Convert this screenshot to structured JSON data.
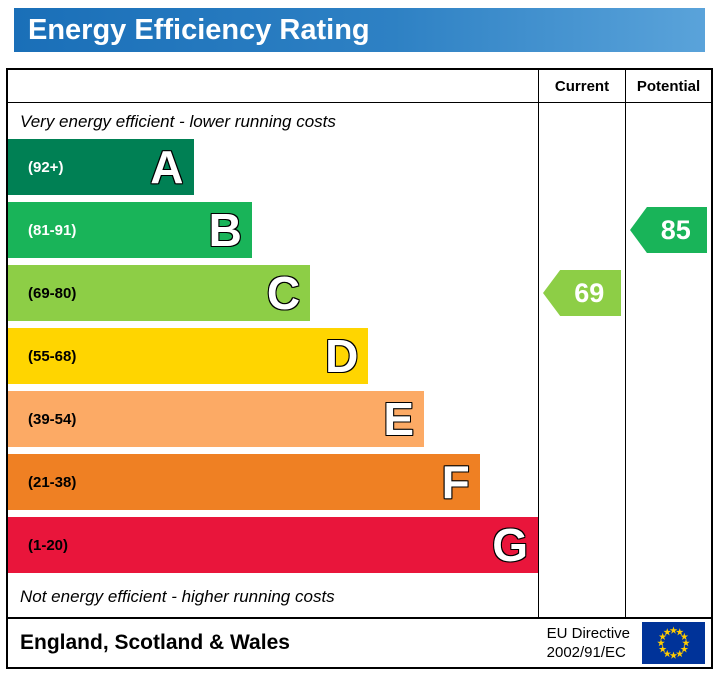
{
  "title": "Energy Efficiency Rating",
  "table_header": {
    "current": "Current",
    "potential": "Potential"
  },
  "captions": {
    "top": "Very energy efficient - lower running costs",
    "bottom": "Not energy efficient - higher running costs"
  },
  "chart_data": {
    "type": "bar",
    "title": "Energy Efficiency Rating",
    "bands": [
      {
        "letter": "A",
        "range": "(92+)",
        "color": "#008054",
        "range_text_color": "#ffffff",
        "width_pct": 35
      },
      {
        "letter": "B",
        "range": "(81-91)",
        "color": "#19b459",
        "range_text_color": "#ffffff",
        "width_pct": 46
      },
      {
        "letter": "C",
        "range": "(69-80)",
        "color": "#8dce46",
        "range_text_color": "#000000",
        "width_pct": 57
      },
      {
        "letter": "D",
        "range": "(55-68)",
        "color": "#ffd500",
        "range_text_color": "#000000",
        "width_pct": 68
      },
      {
        "letter": "E",
        "range": "(39-54)",
        "color": "#fcaa65",
        "range_text_color": "#000000",
        "width_pct": 78.5
      },
      {
        "letter": "F",
        "range": "(21-38)",
        "color": "#ef8023",
        "range_text_color": "#000000",
        "width_pct": 89
      },
      {
        "letter": "G",
        "range": "(1-20)",
        "color": "#e9153b",
        "range_text_color": "#000000",
        "width_pct": 100
      }
    ],
    "current": {
      "value": 69,
      "band": "C",
      "color": "#8dce46"
    },
    "potential": {
      "value": 85,
      "band": "B",
      "color": "#19b459"
    }
  },
  "footer": {
    "region": "England, Scotland & Wales",
    "directive_line1": "EU Directive",
    "directive_line2": "2002/91/EC"
  },
  "colors": {
    "banner_blue": "#2e81c4",
    "eu_flag_blue": "#003399",
    "eu_star_yellow": "#ffcc00"
  }
}
